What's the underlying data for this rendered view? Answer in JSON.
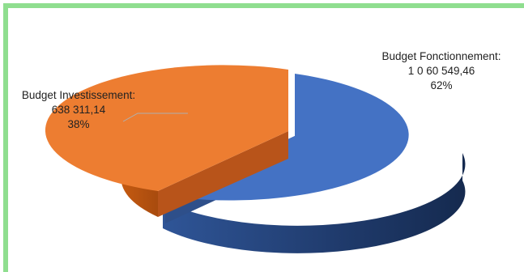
{
  "chart_data": {
    "type": "pie",
    "title": "",
    "slices": [
      {
        "name": "Budget Fonctionnement",
        "name_label": "Budget Fonctionnement:",
        "value_label": "1 0 60 549,46",
        "value": 1060549.46,
        "percent_label": "62%",
        "percent": 62,
        "color": "#4472c4"
      },
      {
        "name": "Budget Investissement",
        "name_label": "Budget Investissement:",
        "value_label": "638 311,14",
        "value": 638311.14,
        "percent_label": "38%",
        "percent": 38,
        "color": "#ed7d31"
      }
    ],
    "style": "3d-pie",
    "legend": "none",
    "frame_color": "#8fde8f"
  }
}
